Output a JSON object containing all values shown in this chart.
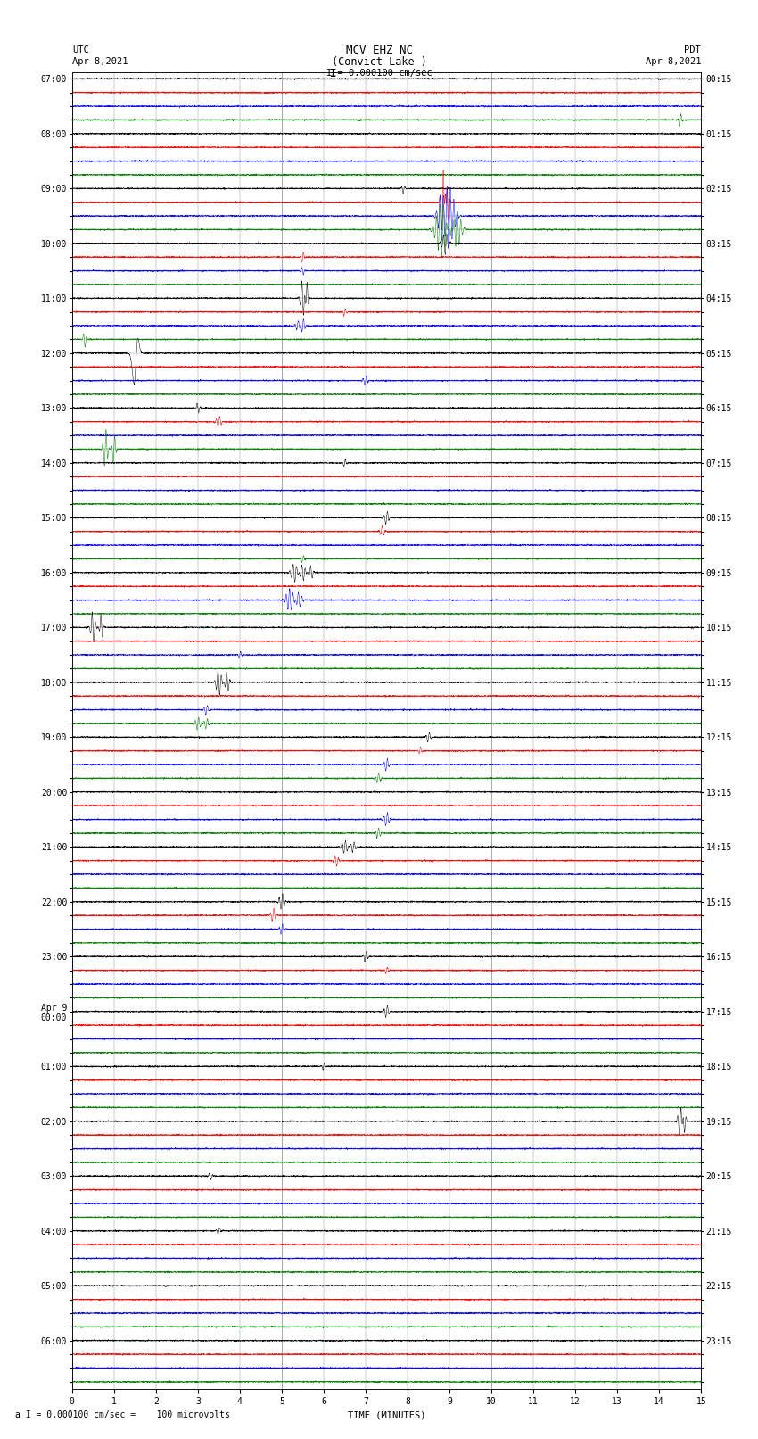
{
  "title_line1": "MCV EHZ NC",
  "title_line2": "(Convict Lake )",
  "scale_text": "I = 0.000100 cm/sec",
  "footer_text": "a I = 0.000100 cm/sec =    100 microvolts",
  "utc_label": "UTC",
  "utc_date": "Apr 8,2021",
  "pdt_label": "PDT",
  "pdt_date": "Apr 8,2021",
  "xlabel": "TIME (MINUTES)",
  "left_labels": [
    "07:00",
    "",
    "",
    "",
    "08:00",
    "",
    "",
    "",
    "09:00",
    "",
    "",
    "",
    "10:00",
    "",
    "",
    "",
    "11:00",
    "",
    "",
    "",
    "12:00",
    "",
    "",
    "",
    "13:00",
    "",
    "",
    "",
    "14:00",
    "",
    "",
    "",
    "15:00",
    "",
    "",
    "",
    "16:00",
    "",
    "",
    "",
    "17:00",
    "",
    "",
    "",
    "18:00",
    "",
    "",
    "",
    "19:00",
    "",
    "",
    "",
    "20:00",
    "",
    "",
    "",
    "21:00",
    "",
    "",
    "",
    "22:00",
    "",
    "",
    "",
    "23:00",
    "",
    "",
    "",
    "Apr 9\n00:00",
    "",
    "",
    "",
    "01:00",
    "",
    "",
    "",
    "02:00",
    "",
    "",
    "",
    "03:00",
    "",
    "",
    "",
    "04:00",
    "",
    "",
    "",
    "05:00",
    "",
    "",
    "",
    "06:00",
    "",
    "",
    ""
  ],
  "right_labels": [
    "00:15",
    "",
    "",
    "",
    "01:15",
    "",
    "",
    "",
    "02:15",
    "",
    "",
    "",
    "03:15",
    "",
    "",
    "",
    "04:15",
    "",
    "",
    "",
    "05:15",
    "",
    "",
    "",
    "06:15",
    "",
    "",
    "",
    "07:15",
    "",
    "",
    "",
    "08:15",
    "",
    "",
    "",
    "09:15",
    "",
    "",
    "",
    "10:15",
    "",
    "",
    "",
    "11:15",
    "",
    "",
    "",
    "12:15",
    "",
    "",
    "",
    "13:15",
    "",
    "",
    "",
    "14:15",
    "",
    "",
    "",
    "15:15",
    "",
    "",
    "",
    "16:15",
    "",
    "",
    "",
    "17:15",
    "",
    "",
    "",
    "18:15",
    "",
    "",
    "",
    "19:15",
    "",
    "",
    "",
    "20:15",
    "",
    "",
    "",
    "21:15",
    "",
    "",
    "",
    "22:15",
    "",
    "",
    "",
    "23:15",
    "",
    "",
    ""
  ],
  "num_rows": 96,
  "num_cols": 15,
  "background_color": "#ffffff",
  "trace_colors_cycle": [
    "black",
    "red",
    "blue",
    "green"
  ],
  "noise_amplitude": 0.025,
  "title_fontsize": 9,
  "label_fontsize": 7.5,
  "tick_fontsize": 7,
  "xlim": [
    0,
    15
  ],
  "xticks": [
    0,
    1,
    2,
    3,
    4,
    5,
    6,
    7,
    8,
    9,
    10,
    11,
    12,
    13,
    14,
    15
  ],
  "special_events": [
    [
      8,
      7.9,
      0.35,
      0.03,
      1
    ],
    [
      9,
      8.85,
      3.0,
      0.04,
      1
    ],
    [
      9,
      8.9,
      -2.5,
      0.03,
      1
    ],
    [
      9,
      8.95,
      2.0,
      0.03,
      1
    ],
    [
      10,
      8.85,
      2.8,
      0.08,
      1
    ],
    [
      10,
      8.9,
      -2.2,
      0.06,
      1
    ],
    [
      10,
      8.95,
      1.8,
      0.05,
      1
    ],
    [
      10,
      9.05,
      1.5,
      0.08,
      1
    ],
    [
      11,
      8.85,
      2.5,
      0.12,
      1
    ],
    [
      11,
      9.0,
      -2.0,
      0.1,
      1
    ],
    [
      11,
      9.15,
      1.8,
      0.09,
      1
    ],
    [
      12,
      8.9,
      0.8,
      0.06,
      1
    ],
    [
      13,
      5.5,
      0.4,
      0.03,
      1
    ],
    [
      14,
      5.5,
      -0.3,
      0.03,
      1
    ],
    [
      16,
      5.5,
      -1.4,
      0.04,
      1
    ],
    [
      16,
      5.6,
      1.2,
      0.03,
      1
    ],
    [
      17,
      6.5,
      0.3,
      0.03,
      1
    ],
    [
      18,
      5.4,
      -0.4,
      0.05,
      1
    ],
    [
      18,
      5.5,
      0.6,
      0.04,
      1
    ],
    [
      19,
      0.3,
      0.6,
      0.03,
      1
    ],
    [
      20,
      1.5,
      -3.0,
      0.05,
      0
    ],
    [
      20,
      1.55,
      2.5,
      0.04,
      0
    ],
    [
      22,
      7.0,
      0.4,
      0.04,
      1
    ],
    [
      24,
      3.0,
      -0.4,
      0.03,
      1
    ],
    [
      25,
      3.5,
      0.4,
      0.05,
      1
    ],
    [
      27,
      0.8,
      -1.5,
      0.04,
      1
    ],
    [
      27,
      1.0,
      1.2,
      0.03,
      1
    ],
    [
      28,
      6.5,
      0.3,
      0.03,
      1
    ],
    [
      32,
      7.5,
      0.5,
      0.04,
      1
    ],
    [
      33,
      7.4,
      -0.4,
      0.04,
      1
    ],
    [
      35,
      5.5,
      0.3,
      0.03,
      1
    ],
    [
      36,
      5.3,
      0.7,
      0.06,
      1
    ],
    [
      36,
      5.5,
      -0.6,
      0.05,
      1
    ],
    [
      36,
      5.7,
      0.5,
      0.04,
      1
    ],
    [
      38,
      5.2,
      0.8,
      0.08,
      1
    ],
    [
      38,
      5.4,
      -0.6,
      0.06,
      1
    ],
    [
      40,
      0.5,
      -1.2,
      0.04,
      1
    ],
    [
      40,
      0.7,
      1.0,
      0.03,
      1
    ],
    [
      42,
      4.0,
      0.3,
      0.03,
      1
    ],
    [
      44,
      3.5,
      -1.0,
      0.05,
      1
    ],
    [
      44,
      3.7,
      0.8,
      0.04,
      1
    ],
    [
      46,
      3.2,
      -0.4,
      0.04,
      1
    ],
    [
      47,
      3.0,
      0.5,
      0.05,
      1
    ],
    [
      47,
      3.2,
      -0.4,
      0.04,
      1
    ],
    [
      48,
      8.5,
      0.4,
      0.04,
      1
    ],
    [
      49,
      8.3,
      -0.3,
      0.03,
      1
    ],
    [
      50,
      7.5,
      0.5,
      0.04,
      1
    ],
    [
      51,
      7.3,
      -0.4,
      0.04,
      1
    ],
    [
      54,
      7.5,
      0.5,
      0.05,
      1
    ],
    [
      55,
      7.3,
      -0.4,
      0.04,
      1
    ],
    [
      56,
      6.5,
      0.5,
      0.06,
      1
    ],
    [
      56,
      6.7,
      -0.4,
      0.05,
      1
    ],
    [
      57,
      6.3,
      0.4,
      0.04,
      1
    ],
    [
      60,
      5.0,
      0.6,
      0.05,
      1
    ],
    [
      61,
      4.8,
      -0.5,
      0.04,
      1
    ],
    [
      62,
      5.0,
      0.4,
      0.04,
      1
    ],
    [
      64,
      7.0,
      0.4,
      0.04,
      1
    ],
    [
      65,
      7.5,
      0.3,
      0.03,
      1
    ],
    [
      68,
      7.5,
      0.5,
      0.04,
      1
    ],
    [
      72,
      6.0,
      0.3,
      0.03,
      1
    ],
    [
      76,
      14.5,
      1.2,
      0.04,
      1
    ],
    [
      76,
      14.6,
      -0.9,
      0.03,
      1
    ],
    [
      80,
      3.3,
      0.3,
      0.03,
      1
    ],
    [
      84,
      3.5,
      0.3,
      0.03,
      1
    ],
    [
      3,
      14.5,
      0.5,
      0.03,
      1
    ]
  ]
}
